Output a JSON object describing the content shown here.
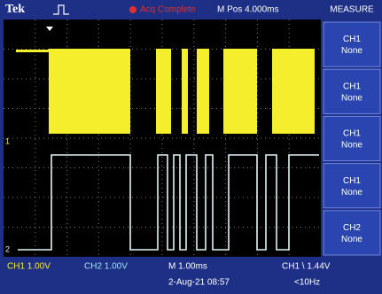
{
  "header": {
    "brand": "Tek",
    "status": "Acq Complete",
    "position": "M Pos 4.000ms"
  },
  "menu": {
    "title": "MEASURE",
    "buttons": [
      {
        "channel": "CH1",
        "value": "None"
      },
      {
        "channel": "CH1",
        "value": "None"
      },
      {
        "channel": "CH1",
        "value": "None"
      },
      {
        "channel": "CH1",
        "value": "None"
      },
      {
        "channel": "CH2",
        "value": "None"
      }
    ]
  },
  "markers": {
    "ch1": "1",
    "ch2": "2"
  },
  "footer": {
    "ch1_scale": "CH1 1.00V",
    "ch2_scale": "CH2 1.00V",
    "time_scale": "M 1.00ms",
    "trigger": "CH1 \\ 1.44V",
    "date": "2-Aug-21 08:57",
    "frequency": "<10Hz"
  }
}
